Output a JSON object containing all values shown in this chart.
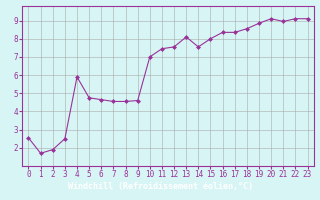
{
  "x": [
    0,
    1,
    2,
    3,
    4,
    5,
    6,
    7,
    8,
    9,
    10,
    11,
    12,
    13,
    14,
    15,
    16,
    17,
    18,
    19,
    20,
    21,
    22,
    23
  ],
  "y": [
    2.55,
    1.7,
    1.9,
    2.5,
    5.9,
    4.75,
    4.65,
    4.55,
    4.55,
    4.6,
    7.0,
    7.45,
    7.55,
    8.1,
    7.55,
    8.0,
    8.35,
    8.35,
    8.55,
    8.85,
    9.1,
    8.95,
    9.1,
    9.1
  ],
  "line_color": "#993399",
  "marker": "D",
  "marker_size": 2,
  "bg_color": "#d8f5f5",
  "grid_color": "#aaaaaa",
  "xlabel": "Windchill (Refroidissement éolien,°C)",
  "tick_color": "#993399",
  "ylim": [
    1.0,
    9.8
  ],
  "xlim": [
    -0.5,
    23.5
  ],
  "yticks": [
    2,
    3,
    4,
    5,
    6,
    7,
    8,
    9
  ],
  "xticks": [
    0,
    1,
    2,
    3,
    4,
    5,
    6,
    7,
    8,
    9,
    10,
    11,
    12,
    13,
    14,
    15,
    16,
    17,
    18,
    19,
    20,
    21,
    22,
    23
  ],
  "spine_color": "#993399",
  "bottom_bg": "#993399",
  "label_font_size": 5.5,
  "tick_font_size": 5.5
}
